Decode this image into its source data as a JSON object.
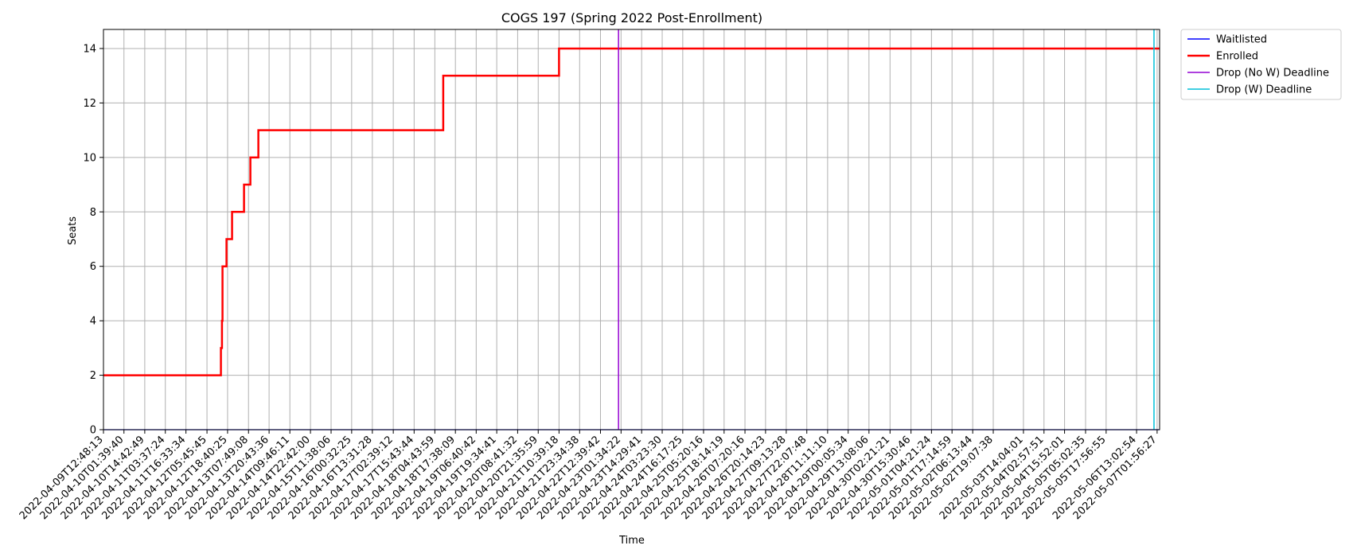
{
  "chart_data": {
    "type": "line",
    "title": "COGS 197 (Spring 2022 Post-Enrollment)",
    "xlabel": "Time",
    "ylabel": "Seats",
    "ylim": [
      0,
      14.7
    ],
    "yticks": [
      0,
      2,
      4,
      6,
      8,
      10,
      12,
      14
    ],
    "xlim": [
      "2022-04-09T12:48:13",
      "2022-05-07T03:30:00"
    ],
    "grid": true,
    "legend_position": "outside-top-right",
    "xtick_labels": [
      "2022-04-09T12:48:13",
      "2022-04-10T01:39:40",
      "2022-04-10T14:42:49",
      "2022-04-11T03:37:24",
      "2022-04-11T16:33:34",
      "2022-04-12T05:45:45",
      "2022-04-12T18:40:25",
      "2022-04-13T07:49:08",
      "2022-04-13T20:43:36",
      "2022-04-14T09:46:11",
      "2022-04-14T22:42:00",
      "2022-04-15T11:38:06",
      "2022-04-16T00:32:25",
      "2022-04-16T13:31:28",
      "2022-04-17T02:39:12",
      "2022-04-17T15:43:44",
      "2022-04-18T04:43:59",
      "2022-04-18T17:38:09",
      "2022-04-19T06:40:42",
      "2022-04-19T19:34:41",
      "2022-04-20T08:41:32",
      "2022-04-20T21:35:59",
      "2022-04-21T10:39:18",
      "2022-04-21T23:34:38",
      "2022-04-22T12:39:42",
      "2022-04-23T01:34:22",
      "2022-04-23T14:29:41",
      "2022-04-24T03:23:30",
      "2022-04-24T16:17:25",
      "2022-04-25T05:20:16",
      "2022-04-25T18:14:19",
      "2022-04-26T07:20:16",
      "2022-04-26T20:14:23",
      "2022-04-27T09:13:28",
      "2022-04-27T22:07:48",
      "2022-04-28T11:11:10",
      "2022-04-29T00:05:34",
      "2022-04-29T13:08:06",
      "2022-04-30T02:21:21",
      "2022-04-30T15:30:46",
      "2022-05-01T04:21:24",
      "2022-05-01T17:14:59",
      "2022-05-02T06:13:44",
      "2022-05-02T19:07:38",
      "2022-05-03T14:04:01",
      "2022-05-04T02:57:51",
      "2022-05-04T15:52:01",
      "2022-05-05T05:02:35",
      "2022-05-05T17:56:55",
      "2022-05-06T13:02:54",
      "2022-05-07T01:56:27"
    ],
    "series": [
      {
        "name": "Waitlisted",
        "color": "#0000ff",
        "step": true,
        "points": [
          [
            "2022-04-09T12:48:13",
            0
          ],
          [
            "2022-05-07T03:30:00",
            0
          ]
        ]
      },
      {
        "name": "Enrolled",
        "color": "#ff0000",
        "step": true,
        "points": [
          [
            "2022-04-09T12:48:13",
            2
          ],
          [
            "2022-04-12T14:30:00",
            3
          ],
          [
            "2022-04-12T15:10:00",
            4
          ],
          [
            "2022-04-12T15:30:00",
            6
          ],
          [
            "2022-04-12T18:00:00",
            7
          ],
          [
            "2022-04-12T21:30:00",
            8
          ],
          [
            "2022-04-13T05:00:00",
            9
          ],
          [
            "2022-04-13T09:00:00",
            10
          ],
          [
            "2022-04-13T14:00:00",
            11
          ],
          [
            "2022-04-18T10:00:00",
            13
          ],
          [
            "2022-04-21T10:39:18",
            14
          ],
          [
            "2022-05-07T03:30:00",
            14
          ]
        ]
      },
      {
        "name": "Drop (No W) Deadline",
        "color": "#9400d3",
        "type": "vline",
        "x": "2022-04-22T23:59:00"
      },
      {
        "name": "Drop (W) Deadline",
        "color": "#00bfd8",
        "type": "vline",
        "x": "2022-05-06T23:59:00"
      }
    ]
  }
}
